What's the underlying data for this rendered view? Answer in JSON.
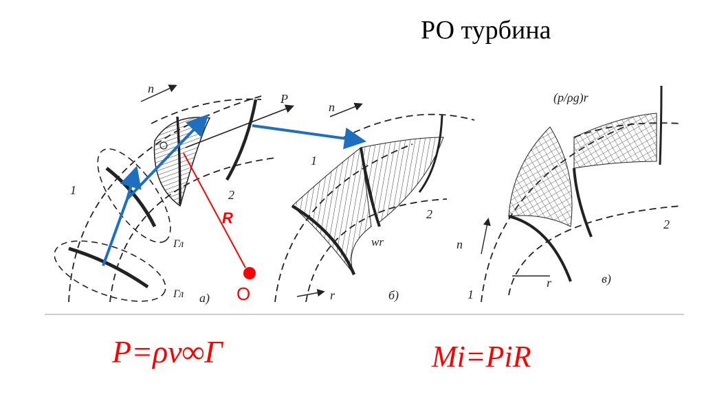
{
  "slide": {
    "title": "РО турбина",
    "formula_left": "P=ρv∞Γ",
    "formula_right": "Mi=PiR"
  },
  "diagram": {
    "labels": {
      "n": "n",
      "P": "P",
      "one": "1",
      "two": "2",
      "gamma_l": "Гл",
      "a": "а)",
      "b": "б)",
      "v": "в)",
      "wr": "wr",
      "r": "r",
      "pressure": "(p/ρg)r",
      "R": "R",
      "O": "O"
    },
    "colors": {
      "blue_arrow": "#1f6fc0",
      "red": "#ff0000"
    }
  }
}
